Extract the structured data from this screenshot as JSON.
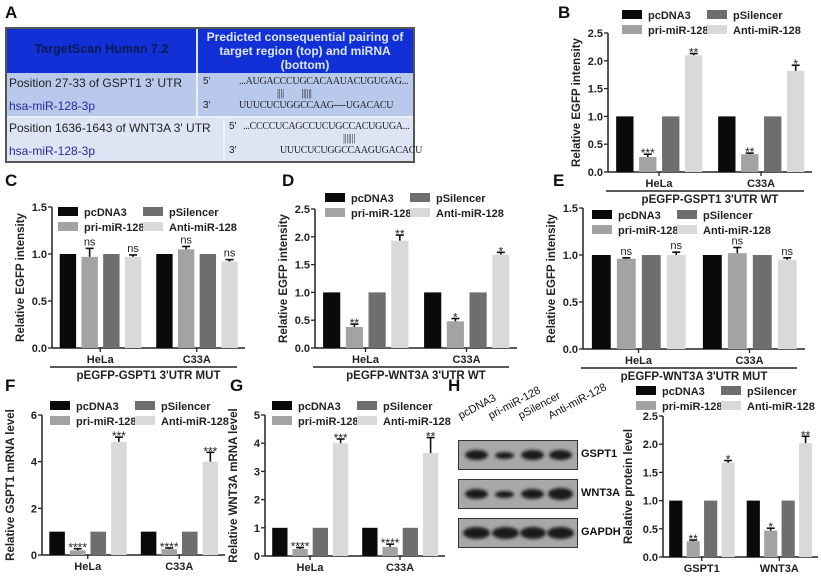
{
  "panel_letters": {
    "A": "A",
    "B": "B",
    "C": "C",
    "D": "D",
    "E": "E",
    "F": "F",
    "G": "G",
    "H": "H"
  },
  "tableA": {
    "header_left": "TargetScan Human 7.2",
    "header_right": "Predicted consequential pairing of target region (top) and miRNA (bottom)",
    "rows": [
      {
        "target": "Position 27-33 of GSPT1 3' UTR",
        "mirna": "hsa-miR-128-3p",
        "p5": "5'",
        "p3": "3'",
        "top": "...AUGACCCUGCACAAUACUGUGAG...",
        "pairs": "||||        ||||||",
        "bottom": "UUUCUCUGGCCAAG----UGACACU"
      },
      {
        "target": "Position 1636-1643 of WNT3A 3' UTR",
        "mirna": "hsa-miR-128-3p",
        "p5": "5'",
        "p3": "3'",
        "top": "...CCCCUCAGCCUCUGCCACUGUGA...",
        "pairs": "|||||||",
        "bottom": "UUUCUCUGGCCAAGUGACACU"
      }
    ],
    "colors": {
      "header": "#1131d6",
      "row1": "#b9c9ec",
      "row2": "#dde4f4"
    }
  },
  "blot": {
    "lanes": [
      "pcDNA3",
      "pri-miR-128",
      "pSilencer",
      "Anti-miR-128"
    ],
    "proteins": [
      "GSPT1",
      "WNT3A",
      "GAPDH"
    ]
  },
  "legend_colors": {
    "pcDNA3": "#0a0a0a",
    "pSilencer": "#6e6e6e",
    "pri-miR-128": "#a3a3a3",
    "Anti-miR-128": "#d9d9d9"
  },
  "chart_data": [
    {
      "id": "B",
      "type": "bar",
      "ylabel": "Relative EGFP intensity",
      "group_title": "pEGFP-GSPT1 3'UTR WT",
      "ylim": [
        0,
        2.5
      ],
      "yticks": [
        "0.0",
        "0.5",
        "1.0",
        "1.5",
        "2.0",
        "2.5"
      ],
      "categories": [
        "HeLa",
        "C33A"
      ],
      "legend": [
        "pcDNA3",
        "pSilencer",
        "pri-miR-128",
        "Anti-miR-128"
      ],
      "series_order": [
        "pcDNA3",
        "pri-miR-128",
        "pSilencer",
        "Anti-miR-128"
      ],
      "values": [
        [
          1,
          0.27,
          1,
          2.1
        ],
        [
          1,
          0.32,
          1,
          1.82
        ]
      ],
      "errors": [
        [
          0,
          0.05,
          0,
          0.03
        ],
        [
          0,
          0.02,
          0,
          0.1
        ]
      ],
      "significance": [
        [
          "",
          "***",
          "",
          "**"
        ],
        [
          "",
          "**",
          "",
          "*"
        ]
      ]
    },
    {
      "id": "C",
      "type": "bar",
      "ylabel": "Relative EGFP intensity",
      "group_title": "pEGFP-GSPT1 3'UTR MUT",
      "ylim": [
        0,
        1.5
      ],
      "yticks": [
        "0.0",
        "0.5",
        "1.0",
        "1.5"
      ],
      "categories": [
        "HeLa",
        "C33A"
      ],
      "legend": [
        "pcDNA3",
        "pSilencer",
        "pri-miR-128",
        "Anti-miR-128"
      ],
      "series_order": [
        "pcDNA3",
        "pri-miR-128",
        "pSilencer",
        "Anti-miR-128"
      ],
      "values": [
        [
          1,
          0.97,
          1,
          0.97
        ],
        [
          1,
          1.05,
          1,
          0.92
        ]
      ],
      "errors": [
        [
          0,
          0.09,
          0,
          0.02
        ],
        [
          0,
          0.03,
          0,
          0.02
        ]
      ],
      "significance": [
        [
          "",
          "ns",
          "",
          "ns"
        ],
        [
          "",
          "ns",
          "",
          "ns"
        ]
      ]
    },
    {
      "id": "D",
      "type": "bar",
      "ylabel": "Relative EGFP intensity",
      "group_title": "pEGFP-WNT3A 3'UTR WT",
      "ylim": [
        0,
        2.5
      ],
      "yticks": [
        "0.0",
        "0.5",
        "1.0",
        "1.5",
        "2.0",
        "2.5"
      ],
      "categories": [
        "HeLa",
        "C33A"
      ],
      "legend": [
        "pcDNA3",
        "pSilencer",
        "pri-miR-128",
        "Anti-miR-128"
      ],
      "series_order": [
        "pcDNA3",
        "pri-miR-128",
        "pSilencer",
        "Anti-miR-128"
      ],
      "values": [
        [
          1,
          0.38,
          1,
          1.93
        ],
        [
          1,
          0.48,
          1,
          1.68
        ]
      ],
      "errors": [
        [
          0,
          0.05,
          0,
          0.1
        ],
        [
          0,
          0.05,
          0,
          0.04
        ]
      ],
      "significance": [
        [
          "",
          "**",
          "",
          "**"
        ],
        [
          "",
          "*",
          "",
          "*"
        ]
      ]
    },
    {
      "id": "E",
      "type": "bar",
      "ylabel": "Relative EGFP intensity",
      "group_title": "pEGFP-WNT3A 3'UTR MUT",
      "ylim": [
        0,
        1.5
      ],
      "yticks": [
        "0.0",
        "0.5",
        "1.0",
        "1.5"
      ],
      "categories": [
        "HeLa",
        "C33A"
      ],
      "legend": [
        "pcDNA3",
        "pSilencer",
        "pri-miR-128",
        "Anti-miR-128"
      ],
      "series_order": [
        "pcDNA3",
        "pri-miR-128",
        "pSilencer",
        "Anti-miR-128"
      ],
      "values": [
        [
          1,
          0.96,
          1,
          1.0
        ],
        [
          1,
          1.02,
          1,
          0.95
        ]
      ],
      "errors": [
        [
          0,
          0.01,
          0,
          0.03
        ],
        [
          0,
          0.06,
          0,
          0.02
        ]
      ],
      "significance": [
        [
          "",
          "ns",
          "",
          "ns"
        ],
        [
          "",
          "ns",
          "",
          "ns"
        ]
      ]
    },
    {
      "id": "F",
      "type": "bar",
      "ylabel": "Relative GSPT1 mRNA level",
      "group_title": "",
      "ylim": [
        0,
        6
      ],
      "yticks": [
        "0",
        "2",
        "4",
        "6"
      ],
      "categories": [
        "HeLa",
        "C33A"
      ],
      "legend": [
        "pcDNA3",
        "pSilencer",
        "pri-miR-128",
        "Anti-miR-128"
      ],
      "series_order": [
        "pcDNA3",
        "pri-miR-128",
        "pSilencer",
        "Anti-miR-128"
      ],
      "values": [
        [
          1,
          0.2,
          1,
          4.85
        ],
        [
          1,
          0.25,
          1,
          4.0
        ]
      ],
      "errors": [
        [
          0,
          0.07,
          0,
          0.2
        ],
        [
          0,
          0.05,
          0,
          0.4
        ]
      ],
      "significance": [
        [
          "",
          "****",
          "",
          "***"
        ],
        [
          "",
          "****",
          "",
          "***"
        ]
      ]
    },
    {
      "id": "G",
      "type": "bar",
      "ylabel": "Relative WNT3A mRNA level",
      "group_title": "",
      "ylim": [
        0,
        5
      ],
      "yticks": [
        "0",
        "1",
        "2",
        "3",
        "4",
        "5"
      ],
      "categories": [
        "HeLa",
        "C33A"
      ],
      "legend": [
        "pcDNA3",
        "pSilencer",
        "pri-miR-128",
        "Anti-miR-128"
      ],
      "series_order": [
        "pcDNA3",
        "pri-miR-128",
        "pSilencer",
        "Anti-miR-128"
      ],
      "values": [
        [
          1,
          0.25,
          1,
          4.0
        ],
        [
          1,
          0.32,
          1,
          3.65
        ]
      ],
      "errors": [
        [
          0,
          0.05,
          0,
          0.15
        ],
        [
          0,
          0.1,
          0,
          0.55
        ]
      ],
      "significance": [
        [
          "",
          "****",
          "",
          "***"
        ],
        [
          "",
          "****",
          "",
          "**"
        ]
      ]
    },
    {
      "id": "H",
      "type": "bar",
      "ylabel": "Relative protein level",
      "group_title": "",
      "ylim": [
        0,
        2.5
      ],
      "yticks": [
        "0.0",
        "0.5",
        "1.0",
        "1.5",
        "2.0",
        "2.5"
      ],
      "categories": [
        "GSPT1",
        "WNT3A"
      ],
      "legend": [
        "pcDNA3",
        "pSilencer",
        "pri-miR-128",
        "Anti-miR-128"
      ],
      "series_order": [
        "pcDNA3",
        "pri-miR-128",
        "pSilencer",
        "Anti-miR-128"
      ],
      "values": [
        [
          1,
          0.28,
          1,
          1.67
        ],
        [
          1,
          0.47,
          1,
          2.02
        ]
      ],
      "errors": [
        [
          0,
          0.02,
          0,
          0.04
        ],
        [
          0,
          0.04,
          0,
          0.12
        ]
      ],
      "significance": [
        [
          "",
          "**",
          "",
          "*"
        ],
        [
          "",
          "*",
          "",
          "**"
        ]
      ]
    }
  ]
}
